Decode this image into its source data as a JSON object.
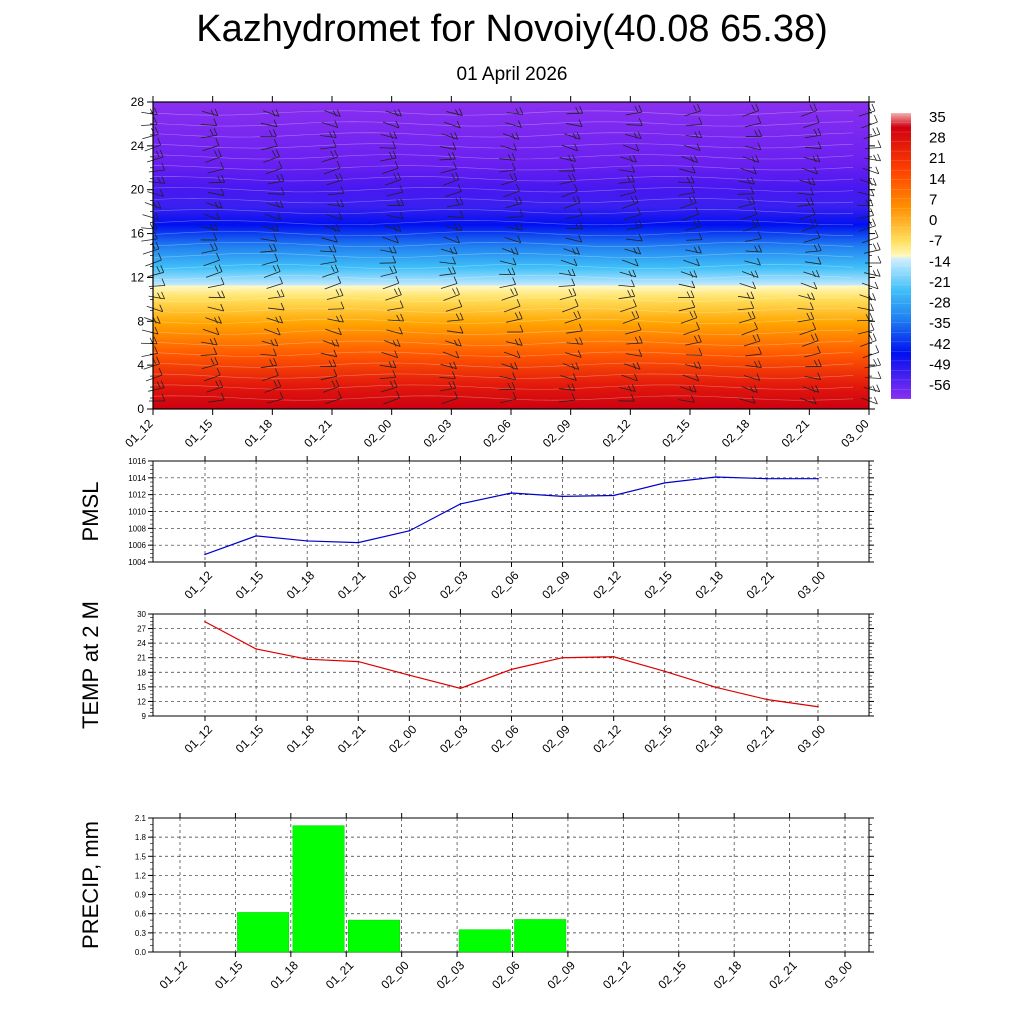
{
  "title": "Kazhydromet for Novoiy(40.08 65.38)",
  "subtitle": "01 April 2026",
  "time_labels": [
    "01_12",
    "01_15",
    "01_18",
    "01_21",
    "02_00",
    "02_03",
    "02_06",
    "02_09",
    "02_12",
    "02_15",
    "02_18",
    "02_21",
    "03_00"
  ],
  "colors": {
    "pmsl_line": "#0000cc",
    "temp_line": "#dd0000",
    "precip_bar": "#00ff00",
    "grid": "#333333"
  },
  "chart_data": [
    {
      "type": "heatmap",
      "name": "cross-section",
      "title": "",
      "ylabel": "",
      "ylim": [
        0,
        28
      ],
      "yticks": [
        0,
        4,
        8,
        12,
        16,
        20,
        24,
        28
      ],
      "colorbar_labels": [
        "35",
        "28",
        "21",
        "14",
        "7",
        "0",
        "-7",
        "-14",
        "-21",
        "-28",
        "-35",
        "-42",
        "-49",
        "-56"
      ],
      "colorbar_range": [
        -63,
        42
      ],
      "wind_barbs": "wind barbs at each time over height"
    },
    {
      "type": "line",
      "name": "pmsl",
      "ylabel": "PMSL",
      "ylim": [
        1004,
        1016
      ],
      "yticks": [
        "1004",
        "1006",
        "1008",
        "1010",
        "1012",
        "1014",
        "1016"
      ],
      "values": [
        1004.9,
        1007.1,
        1006.5,
        1006.3,
        1007.7,
        1010.9,
        1012.2,
        1011.8,
        1011.9,
        1013.4,
        1014.1,
        1013.9,
        1013.9
      ]
    },
    {
      "type": "line",
      "name": "temp2m",
      "ylabel": "TEMP at 2 M",
      "ylim": [
        9,
        30
      ],
      "yticks": [
        "9",
        "12",
        "15",
        "18",
        "21",
        "24",
        "27",
        "30"
      ],
      "values": [
        28.4,
        22.8,
        20.7,
        20.2,
        17.4,
        14.7,
        18.6,
        21.0,
        21.2,
        18.2,
        14.9,
        12.4,
        10.9
      ]
    },
    {
      "type": "bar",
      "name": "precip",
      "ylabel": "PRECIP, mm",
      "ylim": [
        0,
        2.1
      ],
      "yticks": [
        "0.0",
        "0.3",
        "0.6",
        "0.9",
        "1.2",
        "1.5",
        "1.8",
        "2.1"
      ],
      "values": [
        0,
        0.62,
        1.98,
        0.5,
        0,
        0.35,
        0.51,
        0,
        0,
        0,
        0,
        0,
        0
      ]
    }
  ]
}
